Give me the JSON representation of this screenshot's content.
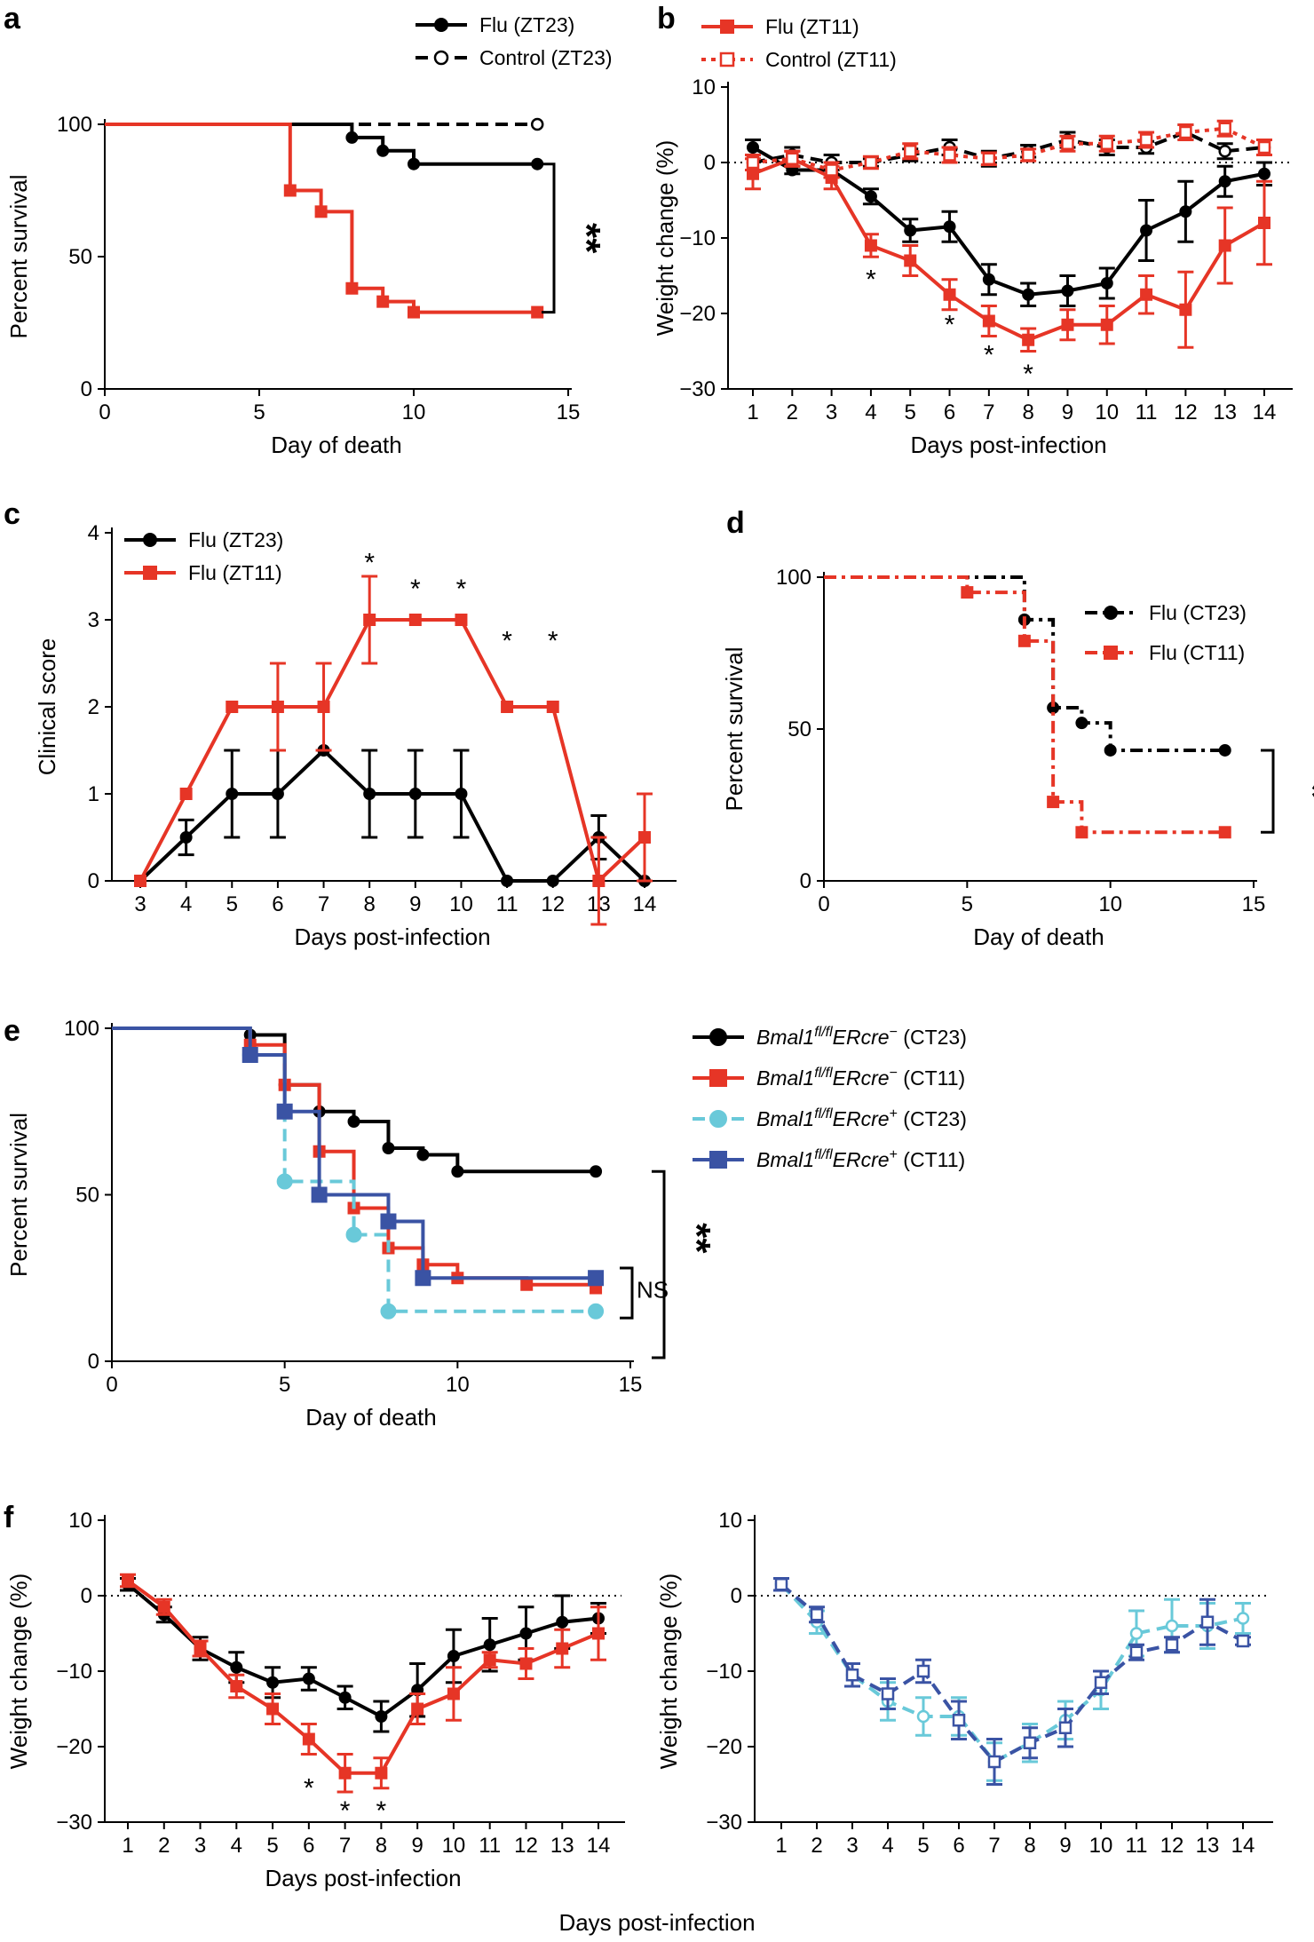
{
  "colors": {
    "black": "#000000",
    "red": "#e63526",
    "cyan": "#69c9d9",
    "blue": "#3a53a4"
  },
  "panel_labels": [
    "a",
    "b",
    "c",
    "d",
    "e",
    "f"
  ],
  "footer_xlabel": "Days post-infection",
  "chart_data": [
    {
      "panel": "a",
      "type": "line",
      "step": true,
      "xlabel": "Day of death",
      "ylabel": "Percent survival",
      "xlim": [
        0,
        15
      ],
      "ylim": [
        0,
        100
      ],
      "xticks": [
        0,
        5,
        10,
        15
      ],
      "yticks": [
        0,
        50,
        100
      ],
      "series": [
        {
          "name": "Flu (ZT23)",
          "color": "black",
          "dash": "solid",
          "marker": "circle",
          "x": [
            0,
            8,
            9,
            10,
            14
          ],
          "y": [
            100,
            95,
            90,
            85,
            85
          ]
        },
        {
          "name": "Control (ZT23)",
          "color": "black",
          "dash": "dashed",
          "marker": "open-circle",
          "x": [
            0,
            14
          ],
          "y": [
            100,
            100
          ]
        },
        {
          "name": "Flu (ZT11)",
          "color": "red",
          "dash": "solid",
          "marker": "square",
          "legend": false,
          "x": [
            0,
            6,
            7,
            8,
            9,
            10,
            14
          ],
          "y": [
            100,
            75,
            67,
            38,
            33,
            29,
            29
          ]
        }
      ],
      "annotations": [
        {
          "text": "**",
          "type": "bracket",
          "between": [
            85,
            29
          ]
        }
      ]
    },
    {
      "panel": "b",
      "type": "line",
      "xlabel": "Days post-infection",
      "ylabel": "Weight change (%)",
      "ylim": [
        -30,
        10
      ],
      "yticks": [
        -30,
        -20,
        -10,
        0,
        10
      ],
      "categories": [
        "1",
        "2",
        "3",
        "4",
        "5",
        "6",
        "7",
        "8",
        "9",
        "10",
        "11",
        "12",
        "13",
        "14"
      ],
      "series": [
        {
          "name": "Flu (ZT23)",
          "color": "black",
          "dash": "solid",
          "marker": "circle",
          "legend": false,
          "values": [
            2,
            -1,
            -1,
            -4.5,
            -9,
            -8.5,
            -15.5,
            -17.5,
            -17,
            -16,
            -9,
            -6.5,
            -2.5,
            -1.5
          ],
          "errors": [
            1,
            0.5,
            1,
            1,
            1.5,
            2,
            2,
            1.5,
            2,
            2,
            4,
            4,
            2,
            1.5
          ]
        },
        {
          "name": "Control (ZT23)",
          "color": "black",
          "dash": "dashed",
          "marker": "open-circle",
          "legend": false,
          "values": [
            0,
            1,
            0,
            0,
            1,
            2,
            0.5,
            1.5,
            3,
            2,
            2,
            4,
            1.5,
            2
          ],
          "errors": [
            1,
            1,
            1,
            0.5,
            0.8,
            1,
            1,
            0.8,
            1,
            1,
            0.8,
            1,
            1,
            1
          ]
        },
        {
          "name": "Flu (ZT11)",
          "color": "red",
          "dash": "solid",
          "marker": "square",
          "values": [
            -1.5,
            0.5,
            -2,
            -11,
            -13,
            -17.5,
            -21,
            -23.5,
            -21.5,
            -21.5,
            -17.5,
            -19.5,
            -11,
            -8
          ],
          "errors": [
            2,
            1,
            1.5,
            1.5,
            2,
            2,
            2,
            1.5,
            2,
            2.5,
            2.5,
            5,
            5,
            5.5
          ]
        },
        {
          "name": "Control (ZT11)",
          "color": "red",
          "dash": "dotted",
          "marker": "open-square",
          "values": [
            0,
            0.5,
            -1,
            0,
            1.5,
            1,
            0.5,
            1,
            2.5,
            2.5,
            3,
            4,
            4.5,
            2
          ],
          "errors": [
            1,
            1,
            1,
            0.8,
            1,
            1,
            0.8,
            0.8,
            1,
            1,
            1,
            1,
            1,
            1
          ]
        }
      ],
      "annotations": [
        {
          "text": "*",
          "x": "4",
          "y": -15
        },
        {
          "text": "*",
          "x": "6",
          "y": -21
        },
        {
          "text": "*",
          "x": "7",
          "y": -25
        },
        {
          "text": "*",
          "x": "8",
          "y": -27.5
        }
      ]
    },
    {
      "panel": "c",
      "type": "line",
      "xlabel": "Days post-infection",
      "ylabel": "Clinical score",
      "ylim": [
        0,
        4
      ],
      "yticks": [
        0,
        1,
        2,
        3,
        4
      ],
      "categories": [
        "3",
        "4",
        "5",
        "6",
        "7",
        "8",
        "9",
        "10",
        "11",
        "12",
        "13",
        "14"
      ],
      "series": [
        {
          "name": "Flu (ZT23)",
          "color": "black",
          "dash": "solid",
          "marker": "circle",
          "values": [
            0,
            0.5,
            1,
            1,
            1.5,
            1,
            1,
            1,
            0,
            0,
            0.5,
            0
          ],
          "errors": [
            0,
            0.2,
            0.5,
            0.5,
            0,
            0.5,
            0.5,
            0.5,
            0,
            0,
            0.25,
            0
          ]
        },
        {
          "name": "Flu (ZT11)",
          "color": "red",
          "dash": "solid",
          "marker": "square",
          "values": [
            0,
            1,
            2,
            2,
            2,
            3,
            3,
            3,
            2,
            2,
            0,
            0.5
          ],
          "errors": [
            0,
            0,
            0,
            0.5,
            0.5,
            0.5,
            0,
            0,
            0,
            0,
            0.5,
            0.5
          ]
        }
      ],
      "annotations": [
        {
          "text": "*",
          "x": "8",
          "y": 3.7
        },
        {
          "text": "*",
          "x": "9",
          "y": 3.4
        },
        {
          "text": "*",
          "x": "10",
          "y": 3.4
        },
        {
          "text": "*",
          "x": "11",
          "y": 2.8
        },
        {
          "text": "*",
          "x": "12",
          "y": 2.8
        }
      ]
    },
    {
      "panel": "d",
      "type": "line",
      "step": true,
      "xlabel": "Day of death",
      "ylabel": "Percent survival",
      "xlim": [
        0,
        15
      ],
      "ylim": [
        0,
        100
      ],
      "xticks": [
        0,
        5,
        10,
        15
      ],
      "yticks": [
        0,
        50,
        100
      ],
      "series": [
        {
          "name": "Flu (CT23)",
          "color": "black",
          "dash": "dashdot",
          "marker": "circle",
          "x": [
            0,
            7,
            8,
            9,
            10,
            14
          ],
          "y": [
            100,
            86,
            57,
            52,
            43,
            43
          ]
        },
        {
          "name": "Flu (CT11)",
          "color": "red",
          "dash": "dashdot",
          "marker": "square",
          "x": [
            0,
            5,
            7,
            8,
            9,
            14
          ],
          "y": [
            100,
            95,
            79,
            26,
            16,
            16
          ]
        }
      ],
      "annotations": [
        {
          "text": "*",
          "type": "bracket",
          "between": [
            43,
            16
          ]
        }
      ]
    },
    {
      "panel": "e",
      "type": "line",
      "step": true,
      "xlabel": "Day of death",
      "ylabel": "Percent survival",
      "xlim": [
        0,
        15
      ],
      "ylim": [
        0,
        100
      ],
      "xticks": [
        0,
        5,
        10,
        15
      ],
      "yticks": [
        0,
        50,
        100
      ],
      "series": [
        {
          "name": "Bmal1fl/flERcre− (CT23)",
          "gene": "Bmal1",
          "sup": "fl/fl",
          "gene2": "ERcre",
          "sup2": "−",
          "cond": " (CT23)",
          "color": "black",
          "dash": "solid",
          "marker": "circle",
          "x": [
            0,
            4,
            5,
            6,
            7,
            8,
            9,
            10,
            14
          ],
          "y": [
            100,
            98,
            83,
            75,
            72,
            64,
            62,
            57,
            57
          ]
        },
        {
          "name": "Bmal1fl/flERcre− (CT11)",
          "gene": "Bmal1",
          "sup": "fl/fl",
          "gene2": "ERcre",
          "sup2": "−",
          "cond": " (CT11)",
          "color": "red",
          "dash": "solid",
          "marker": "square",
          "x": [
            0,
            4,
            5,
            6,
            7,
            8,
            9,
            10,
            12,
            14
          ],
          "y": [
            100,
            95,
            83,
            63,
            46,
            34,
            29,
            25,
            23,
            22
          ]
        },
        {
          "name": "Bmal1fl/flERcre+ (CT23)",
          "gene": "Bmal1",
          "sup": "fl/fl",
          "gene2": "ERcre",
          "sup2": "+",
          "cond": " (CT23)",
          "color": "cyan",
          "dash": "dashed",
          "marker": "circle",
          "x": [
            0,
            4,
            5,
            7,
            8,
            14
          ],
          "y": [
            100,
            92,
            54,
            38,
            15,
            15
          ]
        },
        {
          "name": "Bmal1fl/flERcre+ (CT11)",
          "gene": "Bmal1",
          "sup": "fl/fl",
          "gene2": "ERcre",
          "sup2": "+",
          "cond": " (CT11)",
          "color": "blue",
          "dash": "solid",
          "marker": "square",
          "x": [
            0,
            4,
            5,
            6,
            8,
            9,
            14
          ],
          "y": [
            100,
            92,
            75,
            50,
            42,
            25,
            25
          ]
        }
      ],
      "annotations": [
        {
          "text": "**",
          "type": "bracket",
          "between": [
            57,
            0
          ]
        },
        {
          "text": "NS",
          "type": "bracket",
          "between": [
            25,
            15
          ]
        }
      ]
    },
    {
      "panel": "f-left",
      "type": "line",
      "xlabel": "Days post-infection",
      "ylabel": "Weight change (%)",
      "ylim": [
        -30,
        10
      ],
      "yticks": [
        -30,
        -20,
        -10,
        0,
        10
      ],
      "categories": [
        "1",
        "2",
        "3",
        "4",
        "5",
        "6",
        "7",
        "8",
        "9",
        "10",
        "11",
        "12",
        "13",
        "14"
      ],
      "series": [
        {
          "name": "Bmal1fl/flERcre− (CT23)",
          "color": "black",
          "dash": "solid",
          "marker": "circle",
          "values": [
            1.5,
            -2.5,
            -7,
            -9.5,
            -11.5,
            -11,
            -13.5,
            -16,
            -12.5,
            -8,
            -6.5,
            -5,
            -3.5,
            -3
          ],
          "errors": [
            0.8,
            1,
            1.5,
            2,
            2,
            1.5,
            1.5,
            2,
            3.5,
            3.5,
            3.5,
            3.5,
            3.5,
            2
          ]
        },
        {
          "name": "Bmal1fl/flERcre− (CT11)",
          "color": "red",
          "dash": "solid",
          "marker": "square",
          "values": [
            2,
            -1.5,
            -7,
            -12,
            -15,
            -19,
            -23.5,
            -23.5,
            -15,
            -13,
            -8.5,
            -9,
            -7,
            -5
          ],
          "errors": [
            0.8,
            1,
            1,
            1.5,
            2,
            2,
            2.5,
            2,
            2,
            3.5,
            1,
            2,
            2.5,
            3.5
          ]
        }
      ],
      "annotations": [
        {
          "text": "*",
          "x": "6",
          "y": -25
        },
        {
          "text": "*",
          "x": "7",
          "y": -28
        },
        {
          "text": "*",
          "x": "8",
          "y": -28
        }
      ]
    },
    {
      "panel": "f-right",
      "type": "line",
      "xlabel": "",
      "ylabel": "Weight change (%)",
      "ylim": [
        -30,
        10
      ],
      "yticks": [
        -30,
        -20,
        -10,
        0,
        10
      ],
      "categories": [
        "1",
        "2",
        "3",
        "4",
        "5",
        "6",
        "7",
        "8",
        "9",
        "10",
        "11",
        "12",
        "13",
        "14"
      ],
      "series": [
        {
          "name": "Bmal1fl/flERcre+ (CT23)",
          "color": "cyan",
          "dash": "dashed",
          "marker": "open-circle",
          "values": [
            1.5,
            -3.5,
            -10.5,
            -14,
            -16,
            -16,
            -22,
            -19.5,
            -16.5,
            -12.5,
            -5,
            -4,
            -4,
            -3
          ],
          "errors": [
            0.8,
            1.5,
            1.5,
            2.5,
            2.5,
            2.5,
            2.5,
            2.5,
            2.5,
            2.5,
            3,
            3.5,
            3,
            2
          ]
        },
        {
          "name": "Bmal1fl/flERcre+ (CT11)",
          "color": "blue",
          "dash": "dashed",
          "marker": "open-square",
          "values": [
            1.5,
            -2.5,
            -10.5,
            -13,
            -10,
            -16.5,
            -22,
            -19.5,
            -17.5,
            -11.5,
            -7.5,
            -6.5,
            -3.5,
            -6
          ],
          "errors": [
            0.8,
            1,
            1.5,
            2,
            1.5,
            2.5,
            3,
            2,
            2.5,
            1.5,
            1,
            1,
            3,
            0.5
          ]
        }
      ]
    }
  ]
}
